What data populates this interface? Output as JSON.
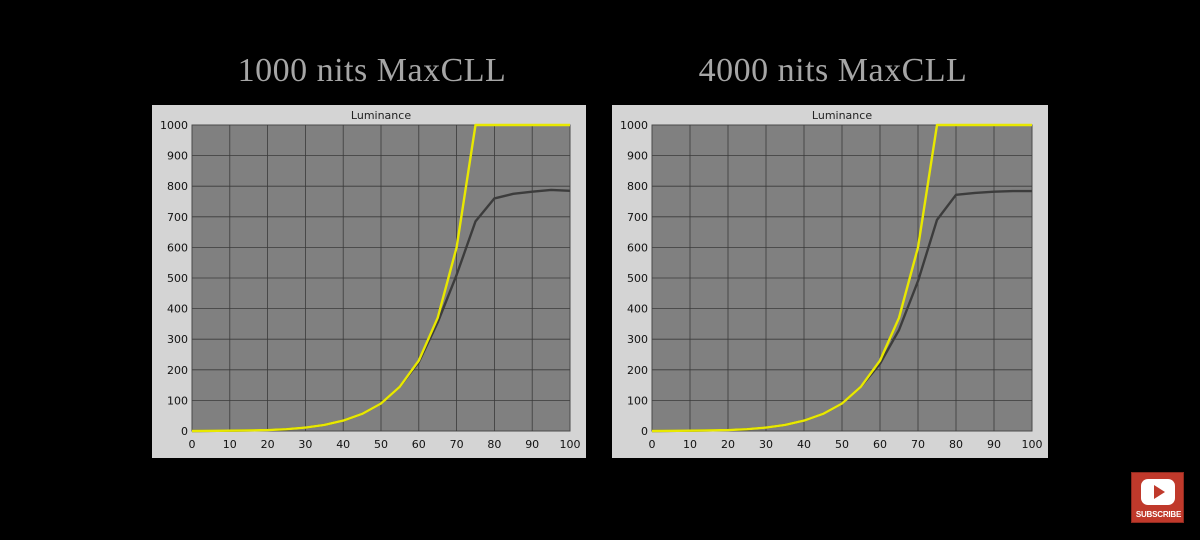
{
  "headings": [
    "1000 nits MaxCLL",
    "4000 nits MaxCLL"
  ],
  "subscribe": {
    "label": "SUBSCRIBE",
    "icon": "youtube-play-icon",
    "color": "#c0392b"
  },
  "colors": {
    "target": "#e8e800",
    "measured": "#3c3c3c",
    "plot_bg": "#808080",
    "panel_bg": "#d4d4d4"
  },
  "chart_data": [
    {
      "type": "line",
      "title": "Luminance",
      "xlim": [
        0,
        100
      ],
      "ylim": [
        0,
        1000
      ],
      "x_ticks": [
        0,
        10,
        20,
        30,
        40,
        50,
        60,
        70,
        80,
        90,
        100
      ],
      "y_ticks": [
        0,
        100,
        200,
        300,
        400,
        500,
        600,
        700,
        800,
        900,
        1000
      ],
      "grid": true,
      "series": [
        {
          "color": "#e8e800",
          "x": [
            0,
            10,
            20,
            25,
            30,
            35,
            40,
            45,
            50,
            55,
            60,
            65,
            70,
            75,
            80,
            90,
            100
          ],
          "y": [
            0,
            1,
            3,
            6,
            11,
            20,
            34,
            56,
            90,
            145,
            230,
            370,
            600,
            1000,
            1000,
            1000,
            1000
          ]
        },
        {
          "color": "#3c3c3c",
          "x": [
            0,
            10,
            20,
            25,
            30,
            35,
            40,
            45,
            50,
            55,
            60,
            65,
            70,
            75,
            80,
            85,
            90,
            95,
            100
          ],
          "y": [
            0,
            1,
            3,
            6,
            11,
            20,
            34,
            56,
            90,
            145,
            225,
            355,
            510,
            685,
            760,
            775,
            782,
            788,
            785
          ]
        }
      ]
    },
    {
      "type": "line",
      "title": "Luminance",
      "xlim": [
        0,
        100
      ],
      "ylim": [
        0,
        1000
      ],
      "x_ticks": [
        0,
        10,
        20,
        30,
        40,
        50,
        60,
        70,
        80,
        90,
        100
      ],
      "y_ticks": [
        0,
        100,
        200,
        300,
        400,
        500,
        600,
        700,
        800,
        900,
        1000
      ],
      "grid": true,
      "series": [
        {
          "color": "#e8e800",
          "x": [
            0,
            10,
            20,
            25,
            30,
            35,
            40,
            45,
            50,
            55,
            60,
            65,
            70,
            75,
            80,
            90,
            100
          ],
          "y": [
            0,
            1,
            3,
            6,
            11,
            20,
            34,
            56,
            90,
            145,
            230,
            370,
            600,
            1000,
            1000,
            1000,
            1000
          ]
        },
        {
          "color": "#3c3c3c",
          "x": [
            0,
            10,
            20,
            25,
            30,
            35,
            40,
            45,
            50,
            55,
            60,
            65,
            70,
            75,
            80,
            85,
            90,
            95,
            100
          ],
          "y": [
            0,
            1,
            3,
            6,
            11,
            20,
            34,
            56,
            90,
            145,
            220,
            330,
            490,
            690,
            772,
            778,
            782,
            784,
            784
          ]
        }
      ]
    }
  ]
}
